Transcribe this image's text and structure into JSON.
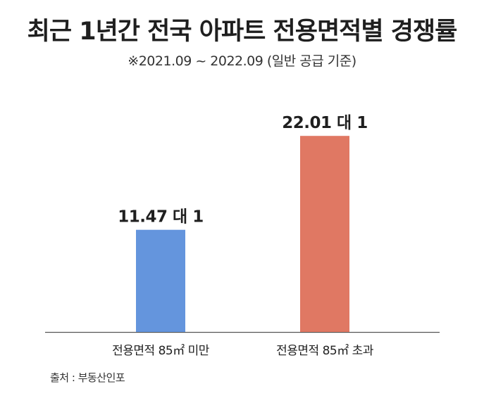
{
  "chart_data": {
    "type": "bar",
    "title": "최근 1년간 전국 아파트 전용면적별 경쟁률",
    "subtitle": "※2021.09 ~ 2022.09 (일반 공급 기준)",
    "categories": [
      "전용면적 85㎡ 미만",
      "전용면적 85㎡ 초과"
    ],
    "values": [
      11.47,
      22.01
    ],
    "data_labels": [
      "11.47 대 1",
      "22.01 대 1"
    ],
    "colors": [
      "#6495dd",
      "#e07863"
    ],
    "xlabel": "",
    "ylabel": "",
    "ylim": [
      0,
      27
    ],
    "grid": false,
    "legend": "none"
  },
  "source": "출처 : 부동산인포"
}
